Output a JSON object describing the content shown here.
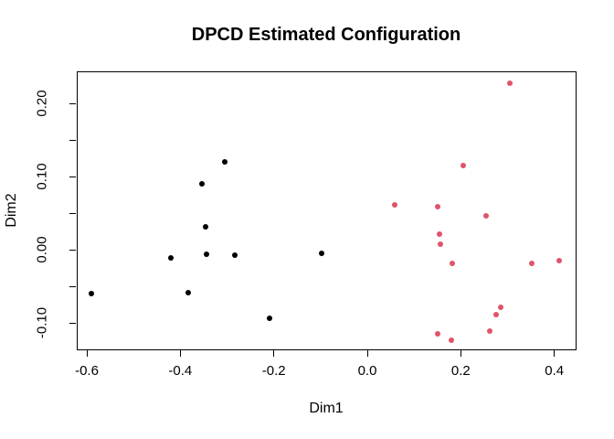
{
  "chart_data": {
    "type": "scatter",
    "title": "DPCD Estimated Configuration",
    "xlabel": "Dim1",
    "ylabel": "Dim2",
    "xlim": [
      -0.6215,
      0.4456
    ],
    "ylim": [
      -0.13625,
      0.24375
    ],
    "grid": false,
    "legend": null,
    "background_color": "#ffffff",
    "axis_color": "#000000",
    "x_ticks": [
      {
        "value": -0.6,
        "label": "-0.6"
      },
      {
        "value": -0.4,
        "label": "-0.4"
      },
      {
        "value": -0.2,
        "label": "-0.2"
      },
      {
        "value": 0.0,
        "label": "0.0"
      },
      {
        "value": 0.2,
        "label": "0.2"
      },
      {
        "value": 0.4,
        "label": "0.4"
      }
    ],
    "y_ticks": [
      {
        "value": 0.2,
        "label": "0.20"
      },
      {
        "value": 0.15,
        "label": ""
      },
      {
        "value": 0.1,
        "label": "0.10"
      },
      {
        "value": 0.05,
        "label": ""
      },
      {
        "value": 0.0,
        "label": "0.00"
      },
      {
        "value": -0.05,
        "label": ""
      },
      {
        "value": -0.1,
        "label": "-0.10"
      }
    ],
    "series": [
      {
        "name": "group-black",
        "color": "#000000",
        "marker": "filled-circle",
        "points": [
          [
            -0.592,
            -0.059
          ],
          [
            -0.422,
            -0.01
          ],
          [
            -0.385,
            -0.058
          ],
          [
            -0.356,
            0.091
          ],
          [
            -0.347,
            0.033
          ],
          [
            -0.345,
            -0.005
          ],
          [
            -0.306,
            0.121
          ],
          [
            -0.286,
            -0.006
          ],
          [
            -0.212,
            -0.093
          ],
          [
            -0.1,
            -0.004
          ]
        ]
      },
      {
        "name": "group-rose",
        "color": "#DF536B",
        "marker": "filled-circle",
        "points": [
          [
            0.302,
            0.229
          ],
          [
            0.203,
            0.116
          ],
          [
            0.056,
            0.063
          ],
          [
            0.149,
            0.06
          ],
          [
            0.252,
            0.047
          ],
          [
            0.152,
            0.022
          ],
          [
            0.154,
            0.009
          ],
          [
            0.179,
            -0.018
          ],
          [
            0.35,
            -0.018
          ],
          [
            0.408,
            -0.014
          ],
          [
            0.283,
            -0.077
          ],
          [
            0.274,
            -0.087
          ],
          [
            0.259,
            -0.11
          ],
          [
            0.148,
            -0.114
          ],
          [
            0.177,
            -0.122
          ]
        ]
      }
    ]
  }
}
